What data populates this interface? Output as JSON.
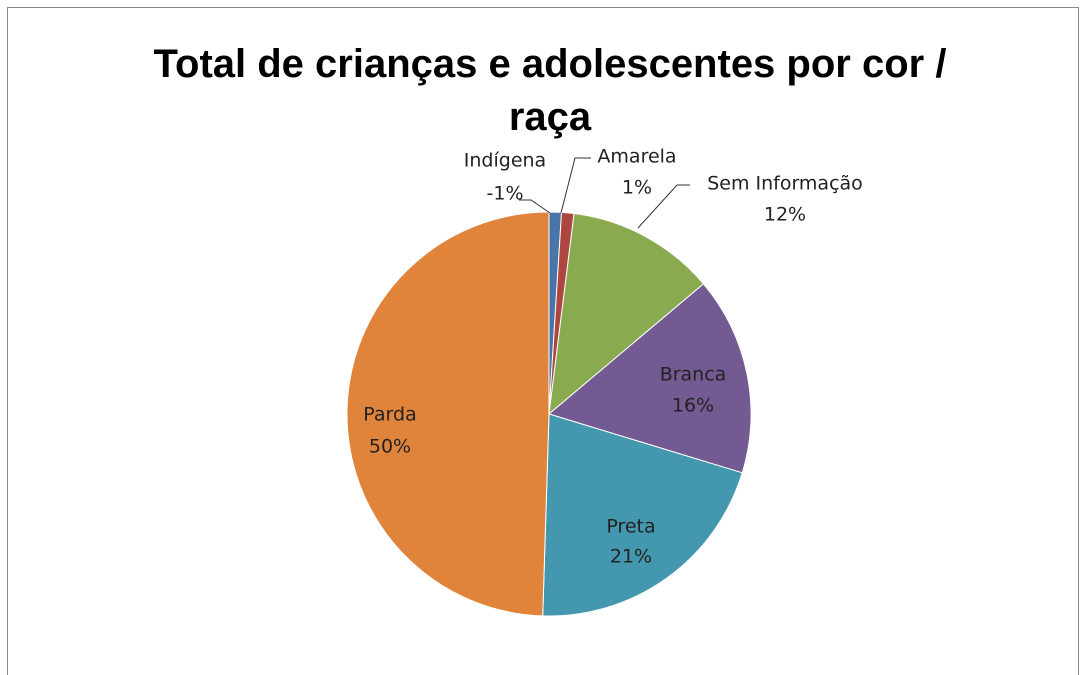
{
  "chart_data": {
    "type": "pie",
    "title": "Total de crianças e adolescentes por cor / raça",
    "categories": [
      "Indígena",
      "Amarela",
      "Sem Informação",
      "Branca",
      "Preta",
      "Parda"
    ],
    "values": [
      -1,
      1,
      12,
      16,
      21,
      50
    ],
    "value_labels": [
      "-1%",
      "1%",
      "12%",
      "16%",
      "21%",
      "50%"
    ],
    "colors": [
      "#4a75a8",
      "#ad4641",
      "#8aaa50",
      "#735a92",
      "#4398b0",
      "#e0843c"
    ]
  }
}
